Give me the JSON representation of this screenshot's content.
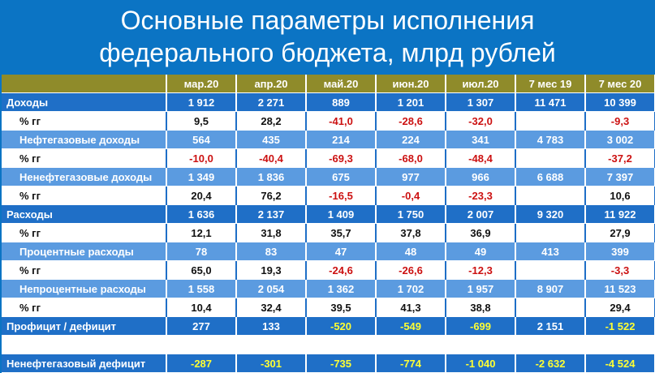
{
  "title": {
    "line1": "Основные параметры исполнения",
    "line2": "федерального бюджета, млрд рублей"
  },
  "columns": [
    "мар.20",
    "апр.20",
    "май.20",
    "июн.20",
    "июл.20",
    "7 мес 19",
    "7 мес 20"
  ],
  "rows": [
    {
      "label": "Доходы",
      "values": [
        "1 912",
        "2 271",
        "889",
        "1 201",
        "1 307",
        "11 471",
        "10 399"
      ]
    },
    {
      "label": "% гг",
      "values": [
        "9,5",
        "28,2",
        "-41,0",
        "-28,6",
        "-32,0",
        "",
        "-9,3"
      ]
    },
    {
      "label": "Нефтегазовые доходы",
      "values": [
        "564",
        "435",
        "214",
        "224",
        "341",
        "4 783",
        "3 002"
      ]
    },
    {
      "label": "% гг",
      "values": [
        "-10,0",
        "-40,4",
        "-69,3",
        "-68,0",
        "-48,4",
        "",
        "-37,2"
      ]
    },
    {
      "label": "Ненефтегазовые доходы",
      "values": [
        "1 349",
        "1 836",
        "675",
        "977",
        "966",
        "6 688",
        "7 397"
      ]
    },
    {
      "label": "% гг",
      "values": [
        "20,4",
        "76,2",
        "-16,5",
        "-0,4",
        "-23,3",
        "",
        "10,6"
      ]
    },
    {
      "label": "Расходы",
      "values": [
        "1 636",
        "2 137",
        "1 409",
        "1 750",
        "2 007",
        "9 320",
        "11 922"
      ]
    },
    {
      "label": "% гг",
      "values": [
        "12,1",
        "31,8",
        "35,7",
        "37,8",
        "36,9",
        "",
        "27,9"
      ]
    },
    {
      "label": "Процентные расходы",
      "values": [
        "78",
        "83",
        "47",
        "48",
        "49",
        "413",
        "399"
      ]
    },
    {
      "label": "% гг",
      "values": [
        "65,0",
        "19,3",
        "-24,6",
        "-26,6",
        "-12,3",
        "",
        "-3,3"
      ]
    },
    {
      "label": "Непроцентные расходы",
      "values": [
        "1 558",
        "2 054",
        "1 362",
        "1 702",
        "1 957",
        "8 907",
        "11 523"
      ]
    },
    {
      "label": "% гг",
      "values": [
        "10,4",
        "32,4",
        "39,5",
        "41,3",
        "38,8",
        "",
        "29,4"
      ]
    },
    {
      "label": "Профицит / дефицит",
      "values": [
        "277",
        "133",
        "-520",
        "-549",
        "-699",
        "2 151",
        "-1 522"
      ]
    },
    {
      "label": "",
      "values": [
        "",
        "",
        "",
        "",
        "",
        "",
        ""
      ]
    },
    {
      "label": "Ненефтегазовый дефицит",
      "values": [
        "-287",
        "-301",
        "-735",
        "-774",
        "-1 040",
        "-2 632",
        "-4 524"
      ]
    }
  ],
  "colors": {
    "background": "#0b74c4",
    "header": "#8f8b2a",
    "main_row": "#1f6fc7",
    "sub_row": "#5b9be0",
    "pct_row": "#ffffff",
    "negative_pct": "#cc1111",
    "negative_total": "#ffff33"
  }
}
